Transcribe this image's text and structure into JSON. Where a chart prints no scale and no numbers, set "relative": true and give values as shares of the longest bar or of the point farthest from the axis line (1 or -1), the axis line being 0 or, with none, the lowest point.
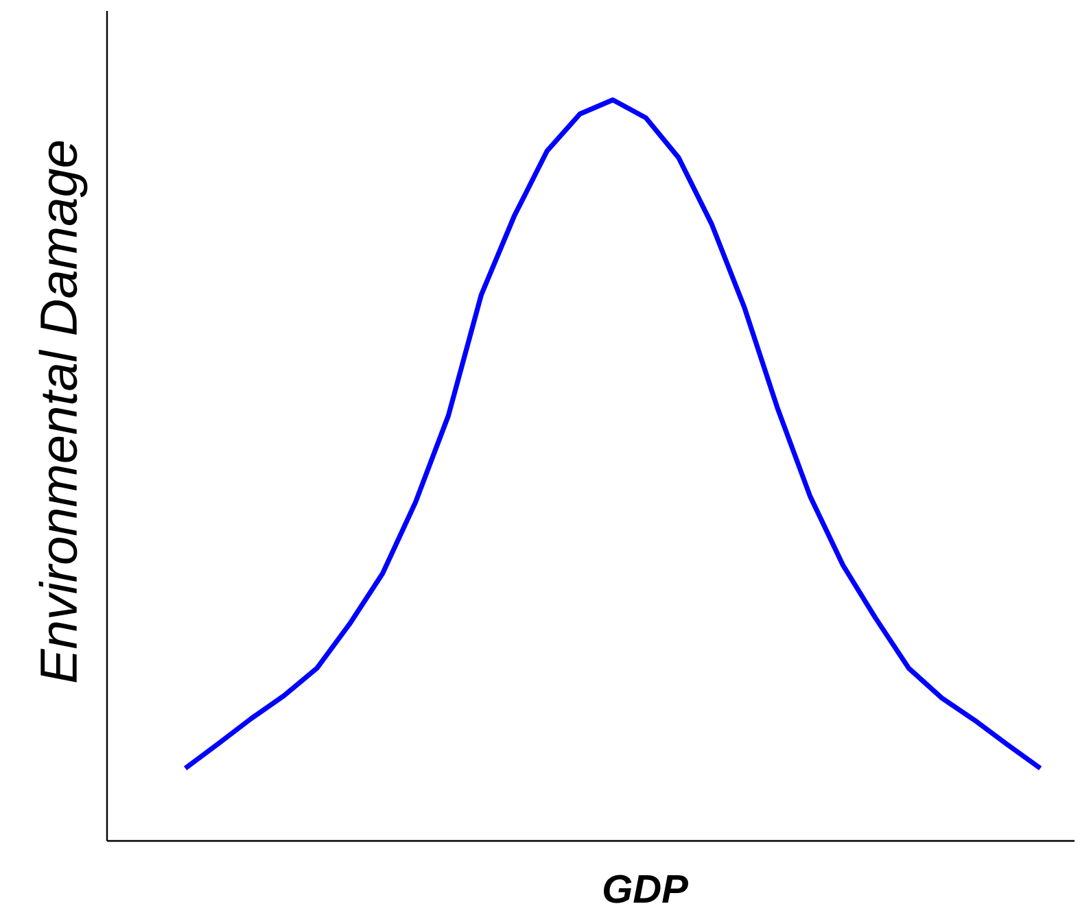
{
  "chart_data": {
    "type": "line",
    "xlabel": "GDP",
    "ylabel": "Environmental Damage",
    "relative": true,
    "marker": "none",
    "line_style": "solid",
    "categories": [
      null,
      null,
      null,
      null,
      null,
      null,
      null,
      null,
      null,
      null,
      null,
      null,
      null,
      null,
      null,
      null,
      null,
      null,
      null,
      null,
      null,
      null,
      null,
      null,
      null,
      null,
      null
    ],
    "series": [
      {
        "color": "#0000ff",
        "values": [
          0.098,
          0.131,
          0.165,
          0.196,
          0.233,
          0.293,
          0.361,
          0.457,
          0.574,
          0.737,
          0.843,
          0.931,
          0.981,
          1,
          0.976,
          0.922,
          0.833,
          0.72,
          0.585,
          0.465,
          0.372,
          0.3,
          0.233,
          0.193,
          0.163,
          0.13,
          0.098
        ]
      }
    ]
  }
}
